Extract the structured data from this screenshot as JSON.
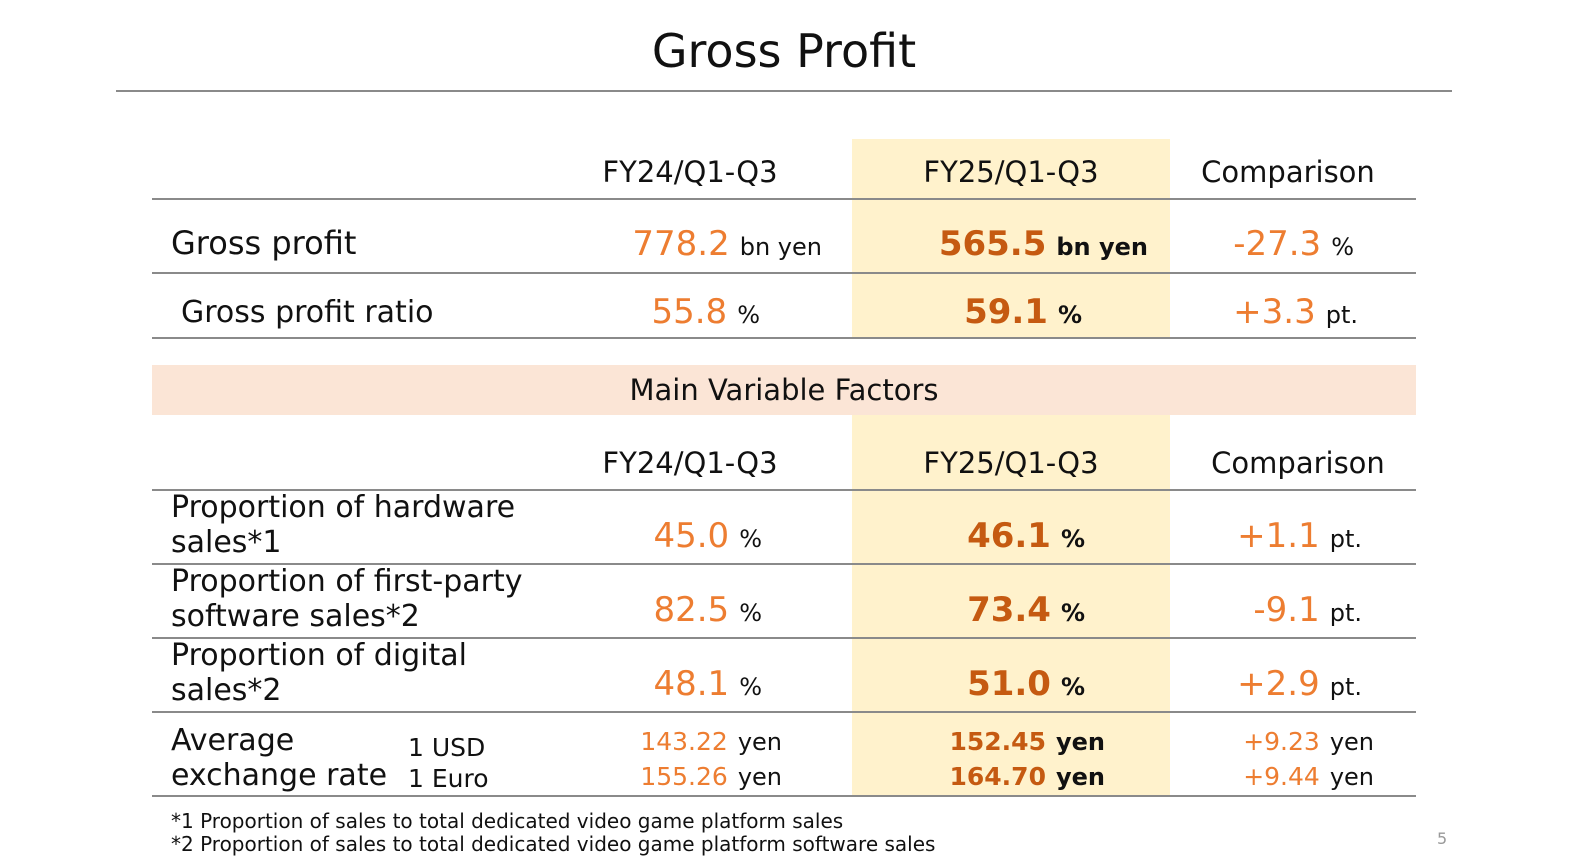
{
  "title": "Gross Profit",
  "columns": [
    "FY24/Q1-Q3",
    "FY25/Q1-Q3",
    "Comparison"
  ],
  "top_rows": [
    {
      "label": "Gross profit",
      "fy24": "778.2",
      "fy24_unit": "bn yen",
      "fy25": "565.5",
      "fy25_unit": "bn yen",
      "cmp": "-27.3",
      "cmp_unit": "%"
    },
    {
      "label": "Gross profit ratio",
      "fy24": "55.8",
      "fy24_unit": "%",
      "fy25": "59.1",
      "fy25_unit": "%",
      "cmp": "+3.3",
      "cmp_unit": "pt."
    }
  ],
  "section_title": "Main Variable Factors",
  "factor_rows": [
    {
      "label1": "Proportion of hardware",
      "label2": "sales*1",
      "fy24": "45.0",
      "fy24_unit": "%",
      "fy25": "46.1",
      "fy25_unit": "%",
      "cmp": "+1.1",
      "cmp_unit": "pt."
    },
    {
      "label1": "Proportion of first-party",
      "label2": "software sales*2",
      "fy24": "82.5",
      "fy24_unit": "%",
      "fy25": "73.4",
      "fy25_unit": "%",
      "cmp": "-9.1",
      "cmp_unit": "pt."
    },
    {
      "label1": "Proportion of digital",
      "label2": "sales*2",
      "fy24": "48.1",
      "fy24_unit": "%",
      "fy25": "51.0",
      "fy25_unit": "%",
      "cmp": "+2.9",
      "cmp_unit": "pt."
    }
  ],
  "fx": {
    "label1": "Average",
    "label2": "exchange rate",
    "rows": [
      {
        "currency": "1 USD",
        "fy24": "143.22",
        "fy25": "152.45",
        "cmp": "+9.23",
        "unit": "yen"
      },
      {
        "currency": "1 Euro",
        "fy24": "155.26",
        "fy25": "164.70",
        "cmp": "+9.44",
        "unit": "yen"
      }
    ]
  },
  "footnotes": [
    "*1 Proportion of sales to total dedicated video game platform sales",
    "*2 Proportion of sales to total dedicated video game platform software sales"
  ],
  "page_number": "5"
}
